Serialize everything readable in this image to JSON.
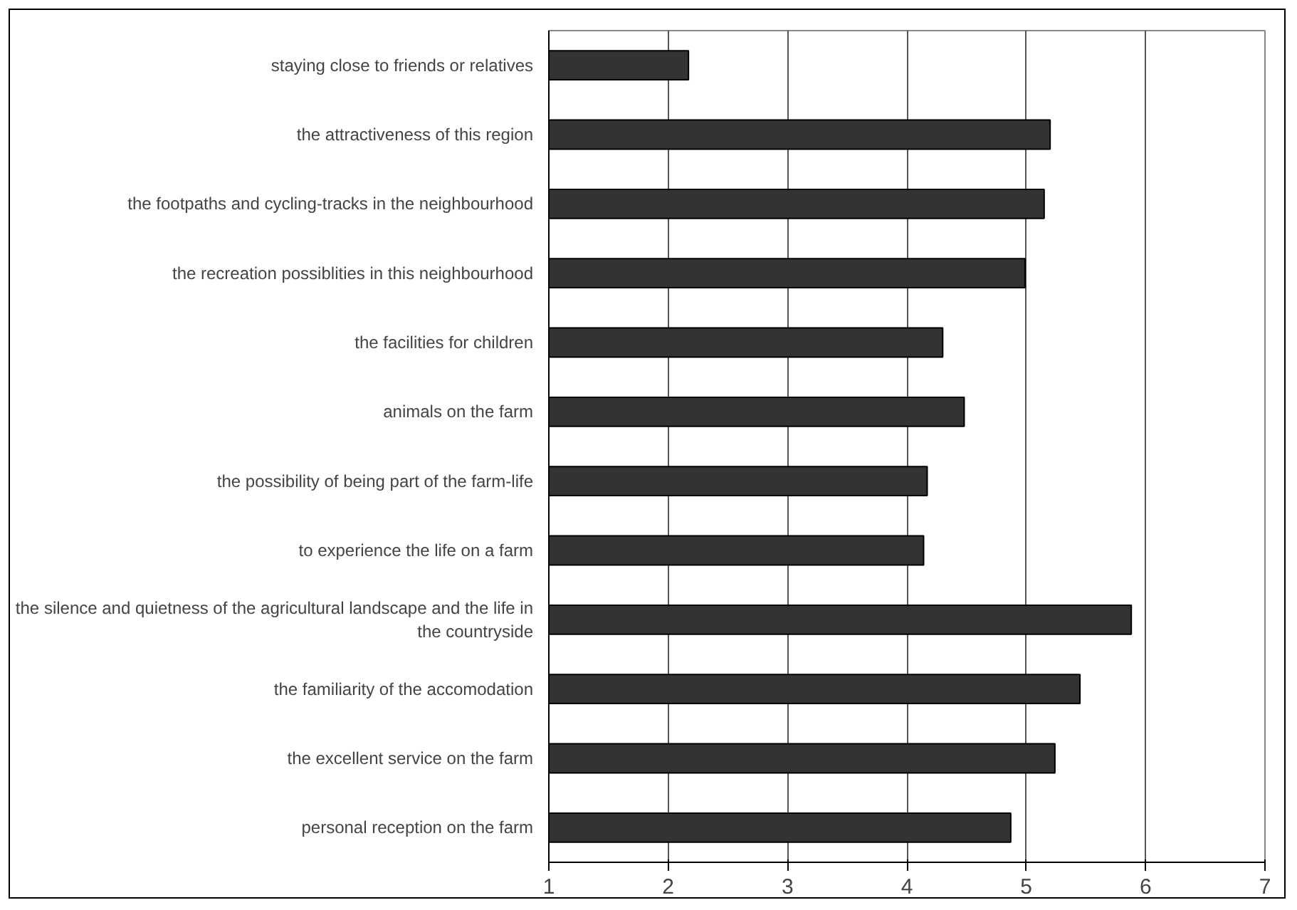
{
  "chart_data": {
    "type": "bar",
    "orientation": "horizontal",
    "categories": [
      "staying close to friends or relatives",
      "the attractiveness of this region",
      "the footpaths and cycling-tracks in the neighbourhood",
      "the recreation possiblities in this neighbourhood",
      "the facilities for children",
      "animals on the farm",
      "the possibility of being part of the farm-life",
      "to experience the life on a farm",
      "the silence and quietness of the agricultural landscape and the life in the countryside",
      "the familiarity of the accomodation",
      "the excellent service on the farm",
      "personal reception on the farm"
    ],
    "values": [
      2.17,
      5.2,
      5.15,
      4.99,
      4.3,
      4.48,
      4.17,
      4.14,
      5.88,
      5.45,
      5.24,
      4.87
    ],
    "color": "#333333",
    "xlim": [
      1,
      7
    ],
    "xticks": [
      1,
      2,
      3,
      4,
      5,
      6,
      7
    ],
    "grid": "x"
  }
}
